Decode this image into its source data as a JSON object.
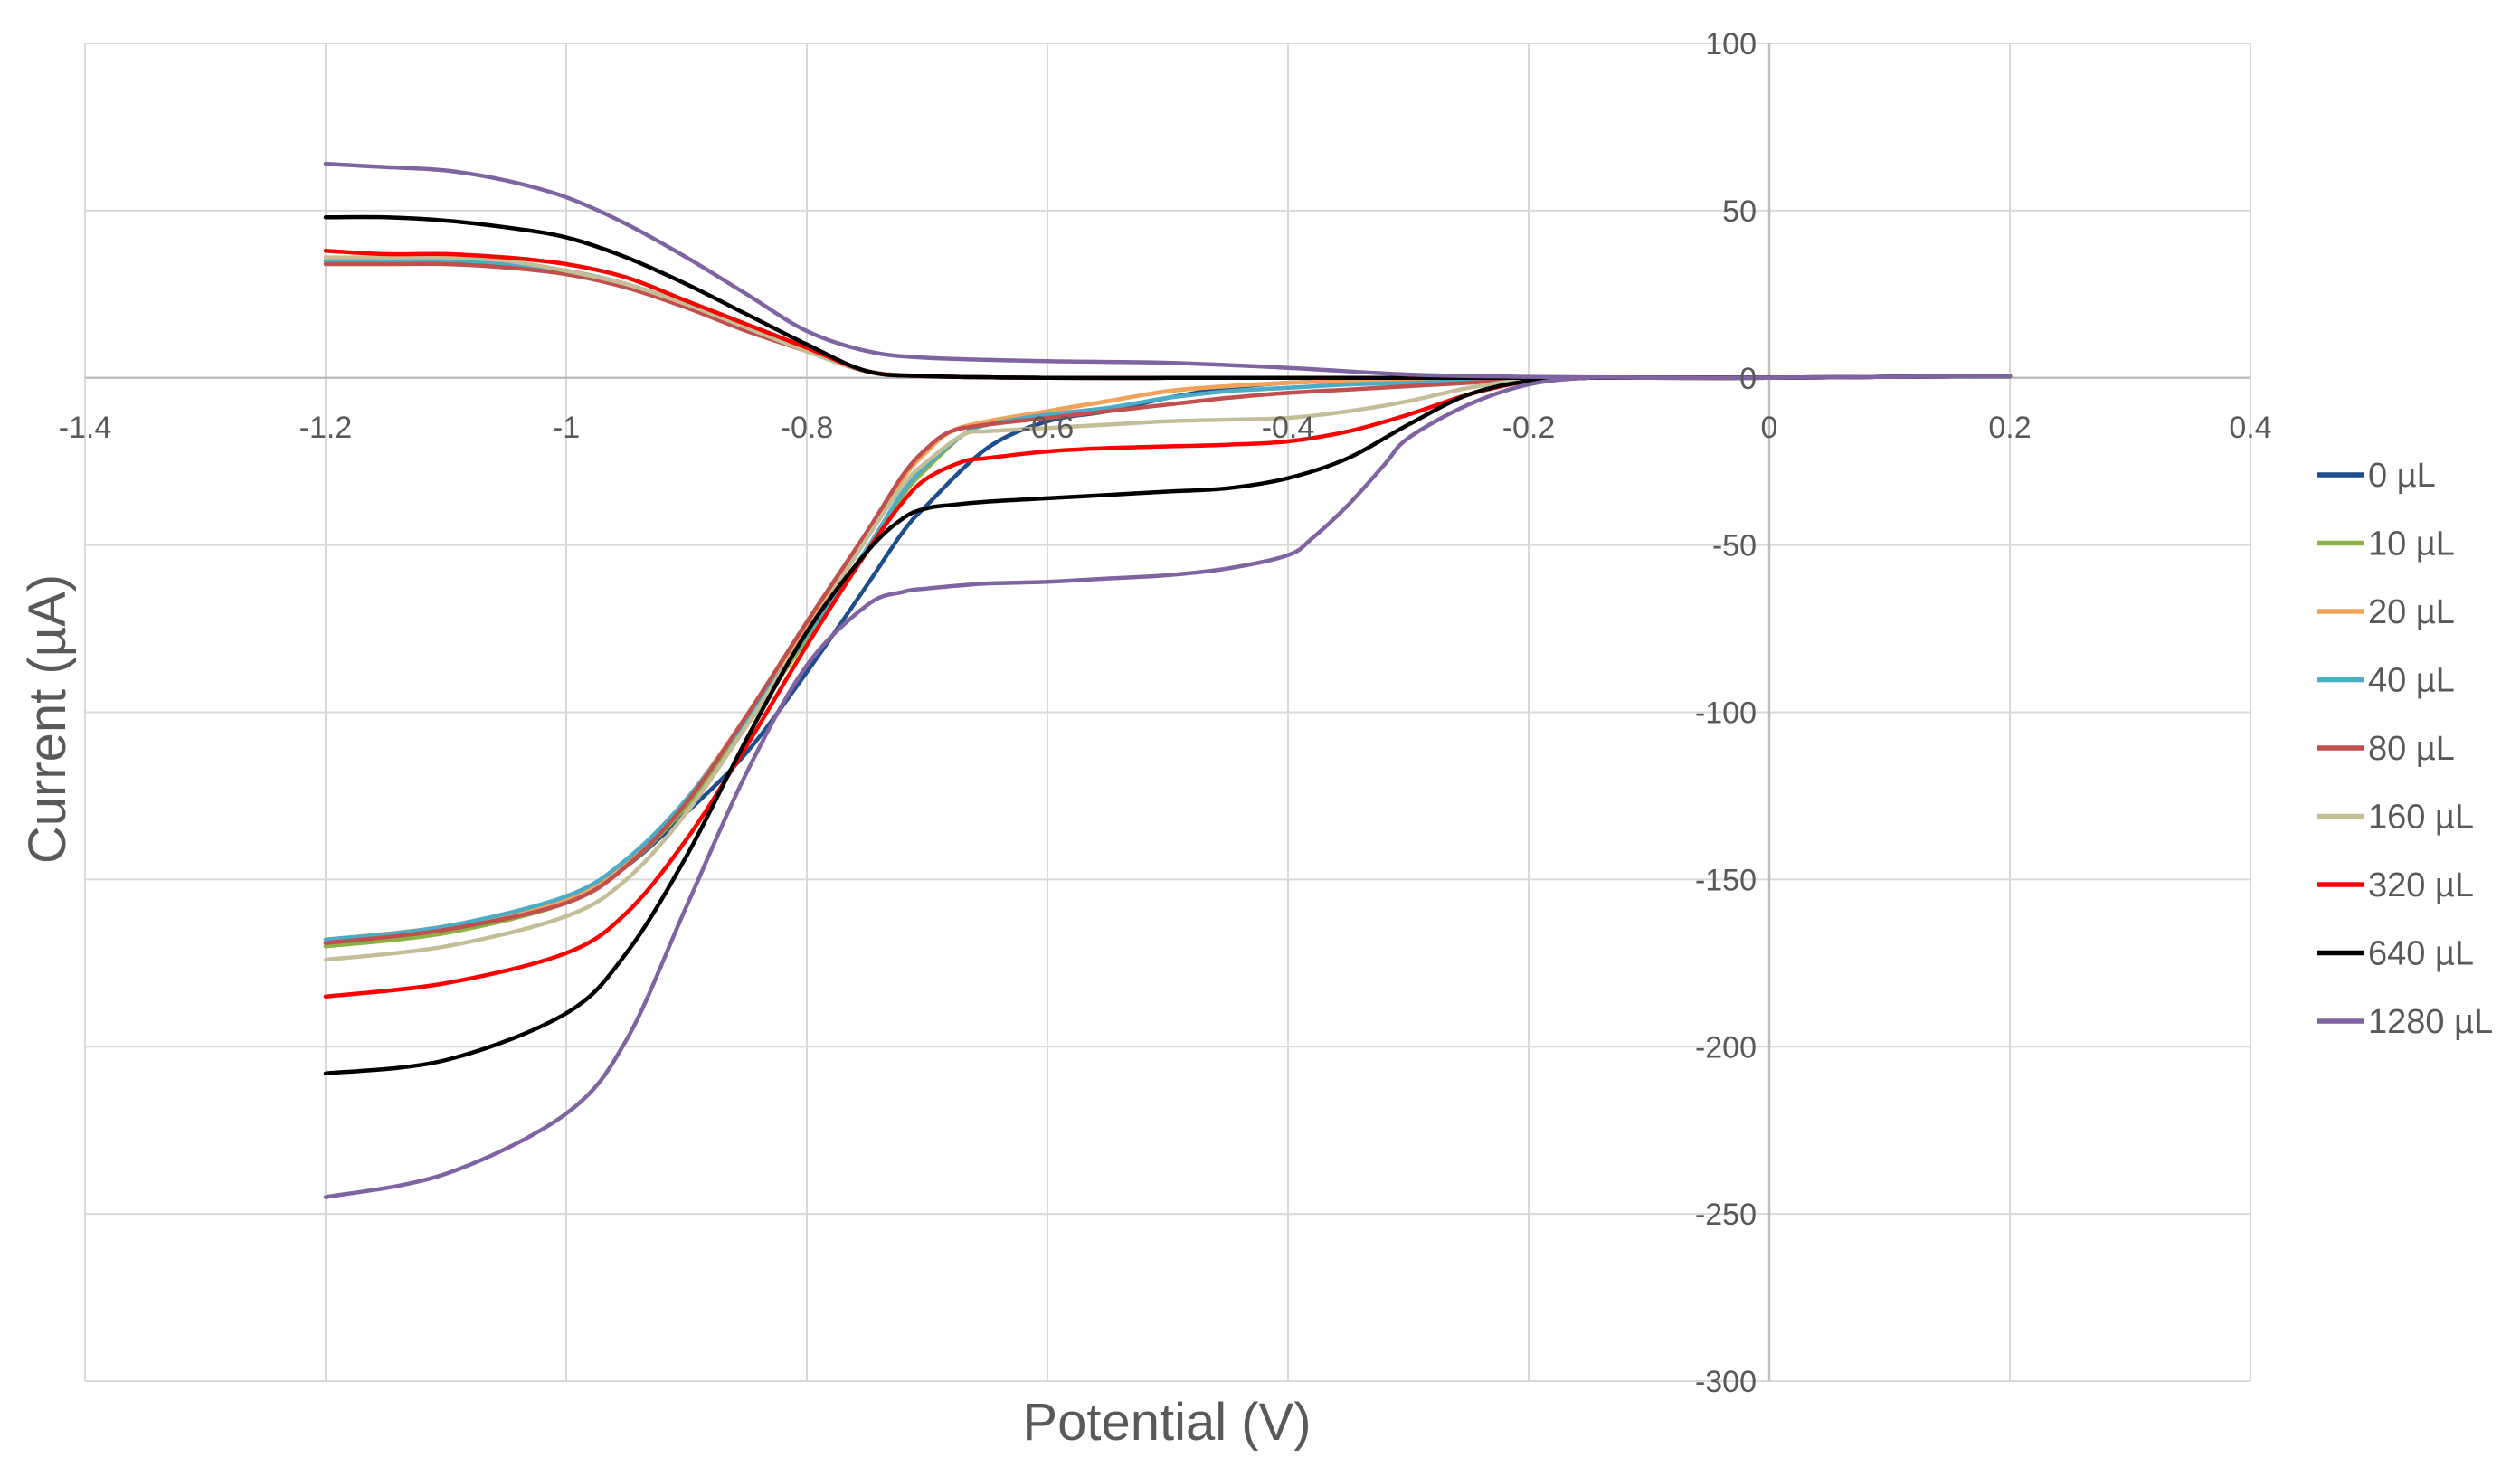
{
  "chart_data": {
    "type": "line",
    "title": "",
    "xlabel": "Potential (V)",
    "ylabel": "Current (µA)",
    "xlim": [
      -1.4,
      0.4
    ],
    "ylim": [
      -300,
      100
    ],
    "x_ticks": [
      -1.4,
      -1.2,
      -1,
      -0.8,
      -0.6,
      -0.4,
      -0.2,
      0,
      0.2,
      0.4
    ],
    "x_tick_labels": [
      "-1.4",
      "-1.2",
      "-1",
      "-0.8",
      "-0.6",
      "-0.4",
      "-0.2",
      "0",
      "0.2",
      "0.4"
    ],
    "y_ticks": [
      100,
      50,
      0,
      -50,
      -100,
      -150,
      -200,
      -250,
      -300
    ],
    "y_tick_labels": [
      "100",
      "50",
      "0",
      "-50",
      "-100",
      "-150",
      "-200",
      "-250",
      "-300"
    ],
    "grid": true,
    "legend_position": "right",
    "series": [
      {
        "name": "0 µL",
        "color": "#1f4e8c",
        "forward": {
          "x": [
            -1.2,
            -1.1,
            -1.0,
            -0.95,
            -0.9,
            -0.85,
            -0.8,
            -0.75,
            -0.72,
            -0.7,
            -0.65,
            -0.6,
            -0.55,
            -0.5,
            -0.45,
            -0.4,
            -0.35,
            -0.3,
            -0.25,
            -0.2,
            -0.15,
            -0.1,
            0.0,
            0.1,
            0.2
          ],
          "y": [
            -169,
            -165,
            -156,
            -146,
            -130,
            -112,
            -88,
            -62,
            -46,
            -38,
            -21,
            -13,
            -10,
            -6,
            -3,
            -1.5,
            -1,
            -1,
            -1,
            -1,
            0,
            0,
            0,
            0.3,
            0.5
          ]
        },
        "reverse": {
          "x": [
            0.2,
            0.1,
            0.0,
            -0.1,
            -0.2,
            -0.3,
            -0.4,
            -0.5,
            -0.6,
            -0.7,
            -0.75,
            -0.8,
            -0.85,
            -0.9,
            -0.95,
            -1.0,
            -1.05,
            -1.1,
            -1.15,
            -1.2
          ],
          "y": [
            0.5,
            0.3,
            0.1,
            0.1,
            0,
            0,
            0,
            0,
            0,
            0.5,
            2,
            8,
            15,
            22,
            28,
            32,
            34,
            35,
            35,
            35
          ]
        }
      },
      {
        "name": "10 µL",
        "color": "#8cb246",
        "forward": {
          "x": [
            -1.2,
            -1.1,
            -1.0,
            -0.95,
            -0.9,
            -0.85,
            -0.8,
            -0.75,
            -0.72,
            -0.7,
            -0.67,
            -0.65,
            -0.6,
            -0.55,
            -0.5,
            -0.45,
            -0.4,
            -0.35,
            -0.3,
            -0.25,
            -0.2,
            -0.15,
            -0.1,
            0.0,
            0.1,
            0.2
          ],
          "y": [
            -170,
            -166,
            -157,
            -146,
            -128,
            -104,
            -78,
            -52,
            -35,
            -27,
            -17,
            -14,
            -10,
            -7,
            -4,
            -2.5,
            -1.5,
            -1,
            -1,
            -1,
            -0.5,
            0,
            0,
            0,
            0.3,
            0.5
          ]
        },
        "reverse": {
          "x": [
            0.2,
            0.1,
            0.0,
            -0.1,
            -0.2,
            -0.3,
            -0.4,
            -0.5,
            -0.6,
            -0.7,
            -0.75,
            -0.8,
            -0.85,
            -0.9,
            -0.95,
            -1.0,
            -1.05,
            -1.1,
            -1.15,
            -1.2
          ],
          "y": [
            0.5,
            0.3,
            0.1,
            0.1,
            0,
            0,
            0,
            0,
            0,
            0.5,
            2,
            8,
            15,
            22,
            28,
            32,
            34,
            35,
            35,
            35
          ]
        }
      },
      {
        "name": "20 µL",
        "color": "#f4a259",
        "forward": {
          "x": [
            -1.2,
            -1.1,
            -1.0,
            -0.95,
            -0.9,
            -0.85,
            -0.8,
            -0.75,
            -0.72,
            -0.7,
            -0.68,
            -0.65,
            -0.6,
            -0.55,
            -0.5,
            -0.45,
            -0.4,
            -0.35,
            -0.3,
            -0.25,
            -0.2,
            -0.15,
            -0.1,
            0.0,
            0.1,
            0.2
          ],
          "y": [
            -168,
            -164,
            -156,
            -145,
            -126,
            -101,
            -74,
            -47,
            -30,
            -22,
            -16,
            -13,
            -10,
            -7,
            -4,
            -2.5,
            -1.5,
            -1,
            -1,
            -1,
            -0.5,
            0,
            0,
            0,
            0.3,
            0.5
          ]
        },
        "reverse": {
          "x": [
            0.2,
            0.1,
            0.0,
            -0.1,
            -0.2,
            -0.3,
            -0.4,
            -0.5,
            -0.6,
            -0.7,
            -0.75,
            -0.8,
            -0.85,
            -0.9,
            -0.95,
            -1.0,
            -1.05,
            -1.1,
            -1.15,
            -1.2
          ],
          "y": [
            0.5,
            0.3,
            0.1,
            0.1,
            0,
            0,
            0,
            0,
            0,
            0.5,
            2,
            8,
            15,
            22,
            28,
            32,
            34,
            35,
            35,
            35
          ]
        }
      },
      {
        "name": "40 µL",
        "color": "#4bacc6",
        "forward": {
          "x": [
            -1.2,
            -1.1,
            -1.0,
            -0.95,
            -0.9,
            -0.85,
            -0.8,
            -0.75,
            -0.72,
            -0.7,
            -0.67,
            -0.65,
            -0.6,
            -0.55,
            -0.5,
            -0.45,
            -0.4,
            -0.35,
            -0.3,
            -0.25,
            -0.2,
            -0.15,
            -0.1,
            0.0,
            0.1,
            0.2
          ],
          "y": [
            -168,
            -164,
            -155,
            -144,
            -126,
            -102,
            -77,
            -51,
            -34,
            -26,
            -17,
            -14,
            -11,
            -9,
            -6,
            -4,
            -3,
            -2,
            -1.5,
            -1,
            -0.5,
            0,
            0,
            0,
            0.3,
            0.5
          ]
        },
        "reverse": {
          "x": [
            0.2,
            0.1,
            0.0,
            -0.1,
            -0.2,
            -0.3,
            -0.4,
            -0.5,
            -0.6,
            -0.7,
            -0.75,
            -0.8,
            -0.85,
            -0.9,
            -0.95,
            -1.0,
            -1.05,
            -1.1,
            -1.15,
            -1.2
          ],
          "y": [
            0.5,
            0.3,
            0.1,
            0.1,
            0,
            0,
            0,
            0,
            0,
            0.5,
            2,
            8,
            15,
            22,
            28,
            32,
            34,
            35,
            35,
            35
          ]
        }
      },
      {
        "name": "80 µL",
        "color": "#c0504d",
        "forward": {
          "x": [
            -1.2,
            -1.1,
            -1.0,
            -0.95,
            -0.9,
            -0.85,
            -0.8,
            -0.75,
            -0.72,
            -0.7,
            -0.68,
            -0.65,
            -0.6,
            -0.55,
            -0.5,
            -0.45,
            -0.4,
            -0.35,
            -0.3,
            -0.25,
            -0.2,
            -0.15,
            -0.1,
            0.0,
            0.1,
            0.2
          ],
          "y": [
            -169,
            -165,
            -157,
            -146,
            -127,
            -101,
            -73,
            -46,
            -29,
            -21,
            -16,
            -14,
            -12,
            -10,
            -8,
            -6,
            -4.5,
            -3.5,
            -2.5,
            -1.5,
            -0.5,
            0,
            0,
            0,
            0.3,
            0.5
          ]
        },
        "reverse": {
          "x": [
            0.2,
            0.1,
            0.0,
            -0.1,
            -0.2,
            -0.3,
            -0.4,
            -0.5,
            -0.6,
            -0.7,
            -0.75,
            -0.8,
            -0.85,
            -0.9,
            -0.95,
            -1.0,
            -1.05,
            -1.1,
            -1.15,
            -1.2
          ],
          "y": [
            0.5,
            0.3,
            0.1,
            0.1,
            0,
            0,
            0,
            0,
            0,
            0.5,
            2,
            8,
            14,
            21,
            27,
            31,
            33,
            34,
            34,
            34
          ]
        }
      },
      {
        "name": "160 µL",
        "color": "#c4bd97",
        "forward": {
          "x": [
            -1.2,
            -1.1,
            -1.0,
            -0.95,
            -0.9,
            -0.85,
            -0.8,
            -0.75,
            -0.72,
            -0.7,
            -0.67,
            -0.65,
            -0.6,
            -0.55,
            -0.5,
            -0.45,
            -0.4,
            -0.35,
            -0.3,
            -0.25,
            -0.2,
            -0.15,
            -0.1,
            0.0,
            0.1,
            0.2
          ],
          "y": [
            -174,
            -170,
            -161,
            -150,
            -130,
            -104,
            -76,
            -48,
            -32,
            -25,
            -17,
            -16,
            -15,
            -14,
            -13,
            -12.5,
            -12,
            -10,
            -7,
            -3,
            -0.5,
            0,
            0,
            0,
            0.3,
            0.5
          ]
        },
        "reverse": {
          "x": [
            0.2,
            0.1,
            0.0,
            -0.1,
            -0.2,
            -0.3,
            -0.4,
            -0.5,
            -0.6,
            -0.7,
            -0.75,
            -0.8,
            -0.85,
            -0.9,
            -0.95,
            -1.0,
            -1.05,
            -1.1,
            -1.15,
            -1.2
          ],
          "y": [
            0.5,
            0.3,
            0.1,
            0.1,
            0,
            0,
            0,
            0,
            0,
            0.5,
            2,
            8,
            15,
            22,
            28,
            32,
            35,
            36,
            36,
            36
          ]
        }
      },
      {
        "name": "320 µL",
        "color": "#ff0000",
        "forward": {
          "x": [
            -1.2,
            -1.1,
            -1.0,
            -0.95,
            -0.9,
            -0.85,
            -0.8,
            -0.75,
            -0.72,
            -0.7,
            -0.67,
            -0.65,
            -0.6,
            -0.55,
            -0.5,
            -0.45,
            -0.4,
            -0.35,
            -0.3,
            -0.25,
            -0.2,
            -0.15,
            -0.1,
            0.0,
            0.1,
            0.2
          ],
          "y": [
            -185,
            -181,
            -172,
            -160,
            -138,
            -110,
            -80,
            -52,
            -37,
            -30,
            -25,
            -24,
            -22,
            -21,
            -20.5,
            -20,
            -19,
            -16,
            -11,
            -5,
            -1,
            0,
            0,
            0,
            0.3,
            0.5
          ]
        },
        "reverse": {
          "x": [
            0.2,
            0.1,
            0.0,
            -0.1,
            -0.2,
            -0.3,
            -0.4,
            -0.5,
            -0.6,
            -0.7,
            -0.75,
            -0.8,
            -0.85,
            -0.9,
            -0.95,
            -1.0,
            -1.05,
            -1.1,
            -1.15,
            -1.2
          ],
          "y": [
            0.5,
            0.3,
            0.1,
            0.1,
            0,
            0,
            0,
            0,
            0,
            0.5,
            2,
            9,
            16,
            23,
            30,
            34,
            36,
            37,
            37,
            38
          ]
        }
      },
      {
        "name": "640 µL",
        "color": "#000000",
        "forward": {
          "x": [
            -1.2,
            -1.1,
            -1.0,
            -0.95,
            -0.9,
            -0.85,
            -0.8,
            -0.75,
            -0.72,
            -0.7,
            -0.68,
            -0.65,
            -0.6,
            -0.55,
            -0.5,
            -0.45,
            -0.4,
            -0.35,
            -0.3,
            -0.25,
            -0.2,
            -0.15,
            -0.1,
            0.0,
            0.1,
            0.2
          ],
          "y": [
            -208,
            -204,
            -190,
            -172,
            -143,
            -108,
            -76,
            -52,
            -42,
            -39,
            -38,
            -37,
            -36,
            -35,
            -34,
            -33,
            -30,
            -24,
            -14,
            -5,
            -1,
            0,
            0,
            0,
            0.3,
            0.5
          ]
        },
        "reverse": {
          "x": [
            0.2,
            0.1,
            0.0,
            -0.1,
            -0.2,
            -0.3,
            -0.4,
            -0.5,
            -0.6,
            -0.7,
            -0.75,
            -0.8,
            -0.85,
            -0.9,
            -0.95,
            -1.0,
            -1.05,
            -1.1,
            -1.15,
            -1.2
          ],
          "y": [
            0.5,
            0.3,
            0.1,
            0.1,
            0,
            0,
            0,
            0,
            0,
            0.5,
            2,
            10,
            19,
            28,
            36,
            42,
            45,
            47,
            48,
            48
          ]
        }
      },
      {
        "name": "1280 µL",
        "color": "#8064a2",
        "forward": {
          "x": [
            -1.2,
            -1.1,
            -1.0,
            -0.95,
            -0.9,
            -0.85,
            -0.8,
            -0.75,
            -0.72,
            -0.7,
            -0.67,
            -0.65,
            -0.6,
            -0.55,
            -0.5,
            -0.45,
            -0.4,
            -0.38,
            -0.35,
            -0.32,
            -0.3,
            -0.25,
            -0.2,
            -0.15,
            -0.1,
            0.0,
            0.1,
            0.2
          ],
          "y": [
            -245,
            -238,
            -220,
            -198,
            -158,
            -118,
            -86,
            -68,
            -64,
            -63,
            -62,
            -61.5,
            -61,
            -60,
            -59,
            -57,
            -53,
            -48,
            -38,
            -26,
            -18,
            -8,
            -2,
            0,
            0,
            0,
            0.3,
            0.5
          ]
        },
        "reverse": {
          "x": [
            0.2,
            0.1,
            0.0,
            -0.1,
            -0.2,
            -0.3,
            -0.4,
            -0.5,
            -0.6,
            -0.7,
            -0.75,
            -0.8,
            -0.85,
            -0.9,
            -0.95,
            -1.0,
            -1.05,
            -1.1,
            -1.15,
            -1.2
          ],
          "y": [
            0.5,
            0.3,
            0.1,
            0.1,
            0.3,
            1,
            3,
            4.5,
            5,
            6,
            8,
            14,
            25,
            36,
            46,
            54,
            59,
            62,
            63,
            64
          ]
        }
      }
    ]
  }
}
